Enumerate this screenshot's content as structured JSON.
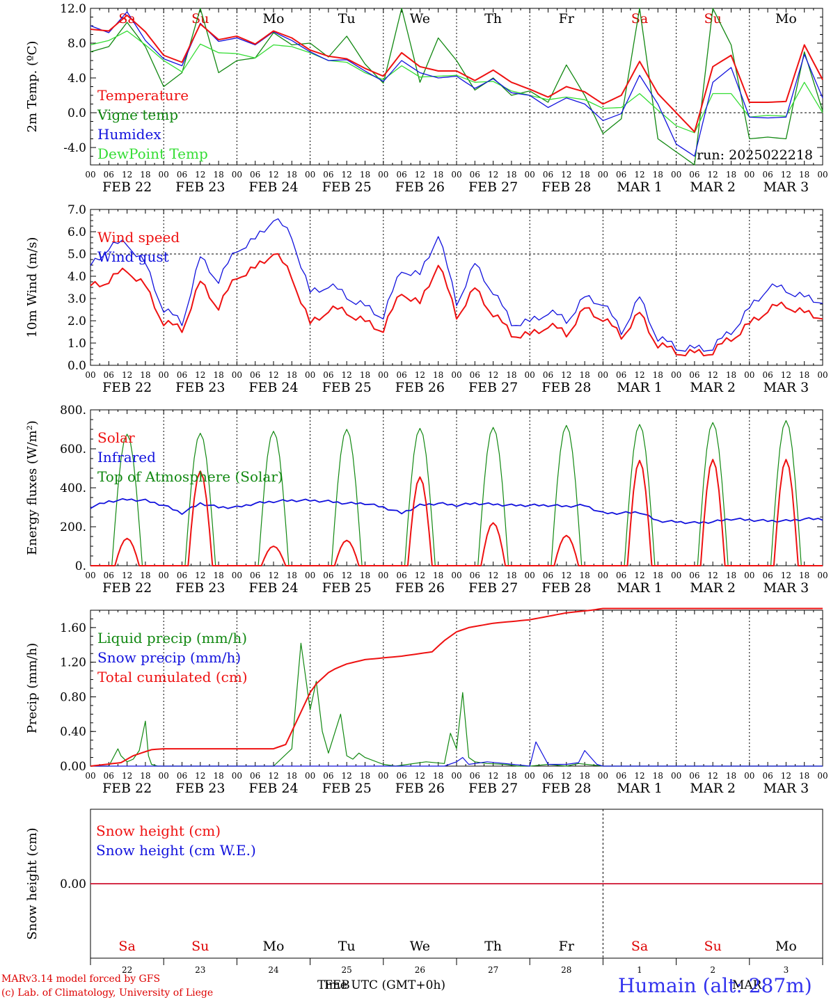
{
  "days": [
    "FEB 22",
    "FEB 23",
    "FEB 24",
    "FEB 25",
    "FEB 26",
    "FEB 27",
    "FEB 28",
    "MAR  1",
    "MAR  2",
    "MAR  3"
  ],
  "weekdays": [
    "Sa",
    "Su",
    "Mo",
    "Tu",
    "We",
    "Th",
    "Fr",
    "Sa",
    "Su",
    "Mo"
  ],
  "weekday_colors": [
    "#dd0000",
    "#dd0000",
    "#000000",
    "#000000",
    "#000000",
    "#000000",
    "#000000",
    "#dd0000",
    "#dd0000",
    "#000000"
  ],
  "hour_ticks": [
    "00",
    "06",
    "12",
    "18"
  ],
  "bottom_day_numbers": [
    "22",
    "23",
    "24",
    "25",
    "26",
    "27",
    "28",
    "1",
    "2",
    "3"
  ],
  "run_label": "run: 2025022218",
  "footer": {
    "credit_line1": "MARv3.14 model forced by GFS",
    "credit_line2": "(c) Lab. of Climatology, University of Liege",
    "x_title": "Time UTC (GMT+0h)",
    "month_left": "FEB",
    "month_right": "MAR",
    "station": "Humain (alt: 287m)"
  },
  "colors": {
    "red": "#ee1111",
    "green": "#118811",
    "blue": "#1111dd",
    "lightgreen": "#33dd33"
  },
  "chart_data": [
    {
      "type": "line",
      "title": "",
      "ylabel": "2m Temp. (ºC)",
      "ylim": [
        -6,
        12
      ],
      "yticks": [
        -4,
        0,
        4,
        8,
        12
      ],
      "ytick_labels": [
        "-4.0",
        "0.0",
        "4.0",
        "8.0",
        "12.0"
      ],
      "dashed_line_at": 0,
      "x_hours_from": "2025-02-22 00 UTC",
      "series": [
        {
          "name": "Temperature",
          "color": "red",
          "x": [
            0,
            6,
            12,
            18,
            24,
            30,
            36,
            42,
            48,
            54,
            60,
            66,
            72,
            78,
            84,
            90,
            96,
            102,
            108,
            114,
            120,
            126,
            132,
            138,
            144,
            150,
            156,
            162,
            168,
            174,
            180,
            186,
            192,
            198,
            204,
            210,
            216,
            222,
            228,
            234,
            240
          ],
          "values": [
            9.6,
            9.4,
            11.2,
            9.3,
            6.6,
            5.8,
            10.2,
            8.4,
            8.8,
            7.9,
            9.4,
            8.6,
            7.2,
            6.5,
            6.2,
            5.1,
            4.2,
            6.9,
            5.3,
            4.8,
            4.8,
            3.7,
            4.9,
            3.5,
            2.7,
            1.8,
            3.0,
            2.4,
            1.0,
            2.0,
            5.9,
            2.2,
            0.0,
            -2.2,
            5.3,
            6.6,
            1.2,
            1.2,
            1.3,
            7.8,
            3.8
          ]
        },
        {
          "name": "Vigne temp",
          "color": "green",
          "x": [
            0,
            6,
            12,
            18,
            24,
            30,
            36,
            42,
            48,
            54,
            60,
            66,
            72,
            78,
            84,
            90,
            96,
            102,
            108,
            114,
            120,
            126,
            132,
            138,
            144,
            150,
            156,
            162,
            168,
            174,
            180,
            186,
            192,
            198,
            204,
            210,
            216,
            222,
            228,
            234,
            240
          ],
          "values": [
            7.0,
            7.6,
            10.4,
            7.6,
            3.0,
            4.6,
            12.0,
            4.6,
            6.0,
            6.3,
            9.2,
            7.8,
            8.0,
            6.4,
            8.8,
            5.6,
            3.4,
            12.0,
            3.5,
            8.6,
            6.0,
            2.6,
            4.0,
            2.0,
            2.5,
            1.2,
            5.5,
            2.0,
            -2.4,
            -0.7,
            12.0,
            -3.0,
            -4.5,
            -6.0,
            12.0,
            7.8,
            -3.0,
            -2.8,
            -3.0,
            7.0,
            0.2
          ]
        },
        {
          "name": "Humidex",
          "color": "blue",
          "x": [
            0,
            6,
            12,
            18,
            24,
            30,
            36,
            42,
            48,
            54,
            60,
            66,
            72,
            78,
            84,
            90,
            96,
            102,
            108,
            114,
            120,
            126,
            132,
            138,
            144,
            150,
            156,
            162,
            168,
            174,
            180,
            186,
            192,
            198,
            204,
            210,
            216,
            222,
            228,
            234,
            240
          ],
          "values": [
            10.0,
            9.2,
            11.6,
            8.3,
            6.2,
            5.4,
            10.3,
            8.2,
            8.6,
            7.8,
            9.3,
            8.3,
            7.0,
            6.0,
            6.1,
            4.8,
            3.6,
            6.0,
            4.6,
            4.0,
            4.2,
            2.8,
            3.9,
            2.3,
            2.0,
            0.6,
            1.7,
            1.0,
            -0.9,
            -0.1,
            4.3,
            1.0,
            -3.6,
            -5.0,
            3.5,
            5.2,
            -0.5,
            -0.6,
            -0.5,
            6.7,
            1.7
          ]
        },
        {
          "name": "DewPoint Temp",
          "color": "lightgreen",
          "x": [
            0,
            6,
            12,
            18,
            24,
            30,
            36,
            42,
            48,
            54,
            60,
            66,
            72,
            78,
            84,
            90,
            96,
            102,
            108,
            114,
            120,
            126,
            132,
            138,
            144,
            150,
            156,
            162,
            168,
            174,
            180,
            186,
            192,
            198,
            204,
            210,
            216,
            222,
            228,
            234,
            240
          ],
          "values": [
            7.8,
            8.3,
            9.4,
            7.8,
            6.0,
            4.7,
            7.9,
            6.9,
            6.8,
            6.3,
            7.8,
            7.6,
            6.9,
            6.0,
            5.8,
            4.6,
            3.8,
            5.4,
            4.1,
            4.2,
            4.3,
            3.5,
            3.6,
            2.5,
            2.0,
            1.5,
            1.8,
            1.5,
            0.5,
            0.6,
            2.2,
            0.3,
            -1.5,
            -2.3,
            2.2,
            2.2,
            -0.5,
            -0.3,
            -0.4,
            3.5,
            0.0
          ]
        }
      ]
    },
    {
      "type": "line",
      "title": "",
      "ylabel": "10m Wind (m/s)",
      "ylim": [
        0,
        7
      ],
      "yticks": [
        0,
        1,
        2,
        3,
        4,
        5,
        6,
        7
      ],
      "ytick_labels": [
        "0.0",
        "1.0",
        "2.0",
        "3.0",
        "4.0",
        "5.0",
        "6.0",
        "7.0"
      ],
      "dashed_line_at": 5,
      "series": [
        {
          "name": "Wind speed",
          "color": "red",
          "x": [
            0,
            6,
            12,
            18,
            24,
            30,
            36,
            42,
            48,
            54,
            60,
            66,
            72,
            78,
            84,
            90,
            96,
            102,
            108,
            114,
            120,
            126,
            132,
            138,
            144,
            150,
            156,
            162,
            168,
            174,
            180,
            186,
            192,
            198,
            204,
            210,
            216,
            222,
            228,
            234,
            240
          ],
          "values": [
            3.5,
            3.8,
            4.3,
            3.5,
            1.9,
            1.6,
            3.7,
            2.6,
            4.0,
            4.3,
            5.1,
            4.0,
            1.8,
            2.5,
            2.4,
            1.9,
            1.6,
            3.3,
            2.7,
            4.6,
            2.2,
            3.4,
            2.3,
            1.4,
            1.3,
            1.8,
            1.4,
            2.5,
            2.1,
            1.3,
            2.3,
            0.9,
            0.6,
            0.5,
            0.6,
            1.2,
            1.8,
            2.5,
            2.7,
            2.3,
            2.2
          ]
        },
        {
          "name": "Wind gust",
          "color": "blue",
          "x": [
            0,
            6,
            12,
            18,
            24,
            30,
            36,
            42,
            48,
            54,
            60,
            66,
            72,
            78,
            84,
            90,
            96,
            102,
            108,
            114,
            120,
            126,
            132,
            138,
            144,
            150,
            156,
            162,
            168,
            174,
            180,
            186,
            192,
            198,
            204,
            210,
            216,
            222,
            228,
            234,
            240
          ],
          "values": [
            4.4,
            5.3,
            5.5,
            4.5,
            2.5,
            1.9,
            4.8,
            3.8,
            5.2,
            5.6,
            6.6,
            5.8,
            3.2,
            3.6,
            3.1,
            2.6,
            2.2,
            4.3,
            4.0,
            5.9,
            2.8,
            4.5,
            3.3,
            1.9,
            1.9,
            2.4,
            2.0,
            3.0,
            2.8,
            1.5,
            3.0,
            1.2,
            0.8,
            0.7,
            0.8,
            1.5,
            2.5,
            3.5,
            3.4,
            3.0,
            2.9
          ]
        }
      ]
    },
    {
      "type": "line",
      "title": "",
      "ylabel": "Energy fluxes (W/m²)",
      "ylim": [
        0,
        800
      ],
      "yticks": [
        0,
        200,
        400,
        600,
        800
      ],
      "ytick_labels": [
        "0.",
        "200.",
        "400.",
        "600.",
        "800."
      ],
      "series": [
        {
          "name": "Solar",
          "color": "red",
          "daily_peak": [
            140,
            485,
            100,
            130,
            455,
            220,
            155,
            540,
            545,
            545
          ]
        },
        {
          "name": "Infrared",
          "color": "blue",
          "x": [
            0,
            6,
            12,
            18,
            24,
            30,
            36,
            42,
            48,
            54,
            60,
            66,
            72,
            78,
            84,
            90,
            96,
            102,
            108,
            114,
            120,
            126,
            132,
            138,
            144,
            150,
            156,
            162,
            168,
            174,
            180,
            186,
            192,
            198,
            204,
            210,
            216,
            222,
            228,
            234,
            240
          ],
          "values": [
            300,
            330,
            340,
            335,
            310,
            270,
            320,
            300,
            300,
            320,
            330,
            335,
            335,
            330,
            320,
            320,
            300,
            270,
            310,
            320,
            310,
            320,
            315,
            310,
            310,
            310,
            305,
            310,
            270,
            270,
            275,
            230,
            225,
            220,
            225,
            240,
            235,
            230,
            230,
            240,
            240
          ]
        },
        {
          "name": "Top of Atmosphere (Solar)",
          "color": "green",
          "daily_peak": [
            675,
            680,
            690,
            700,
            705,
            710,
            720,
            725,
            735,
            745
          ]
        }
      ]
    },
    {
      "type": "line",
      "title": "",
      "ylabel": "Precip (mm/h)",
      "ylim": [
        0,
        1.8
      ],
      "yticks": [
        0,
        0.4,
        0.8,
        1.2,
        1.6
      ],
      "ytick_labels": [
        "0.00",
        "0.40",
        "0.80",
        "1.20",
        "1.60"
      ],
      "series": [
        {
          "name": "Liquid precip (mm/h)",
          "color": "green",
          "x": [
            0,
            6,
            9,
            10,
            12,
            14,
            16,
            18,
            19,
            20,
            22,
            24,
            36,
            48,
            60,
            66,
            69,
            72,
            74,
            76,
            78,
            82,
            84,
            86,
            88,
            90,
            96,
            100,
            110,
            116,
            118,
            120,
            122,
            124,
            126,
            130,
            136,
            140,
            144,
            150,
            156,
            160,
            168,
            175,
            180,
            200,
            240
          ],
          "values": [
            0,
            0,
            0.2,
            0.12,
            0.05,
            0.08,
            0.18,
            0.52,
            0.12,
            0.02,
            0,
            0,
            0,
            0,
            0,
            0.2,
            1.42,
            0.65,
            0.98,
            0.4,
            0.15,
            0.6,
            0.12,
            0.08,
            0.15,
            0.1,
            0.02,
            0,
            0.05,
            0.03,
            0.38,
            0.2,
            0.85,
            0.1,
            0.05,
            0.03,
            0.02,
            0,
            0,
            0.02,
            0,
            0.03,
            0,
            0,
            0,
            0,
            0
          ]
        },
        {
          "name": "Snow precip (mm/h)",
          "color": "blue",
          "x": [
            0,
            116,
            120,
            122,
            124,
            130,
            136,
            144,
            146,
            150,
            156,
            160,
            162,
            166,
            168,
            176,
            240
          ],
          "values": [
            0,
            0,
            0.05,
            0.1,
            0.02,
            0.05,
            0.03,
            0,
            0.28,
            0.02,
            0.02,
            0.04,
            0.18,
            0.02,
            0,
            0,
            0
          ]
        },
        {
          "name": "Total cumulated (cm)",
          "color": "red",
          "x": [
            0,
            10,
            14,
            20,
            24,
            36,
            48,
            60,
            64,
            66,
            70,
            72,
            74,
            78,
            80,
            84,
            90,
            96,
            102,
            108,
            112,
            116,
            118,
            120,
            124,
            132,
            144,
            150,
            156,
            164,
            168,
            180,
            240
          ],
          "values": [
            0,
            0.04,
            0.12,
            0.19,
            0.2,
            0.2,
            0.2,
            0.2,
            0.25,
            0.4,
            0.7,
            0.85,
            0.95,
            1.08,
            1.12,
            1.18,
            1.23,
            1.25,
            1.27,
            1.3,
            1.32,
            1.45,
            1.5,
            1.55,
            1.6,
            1.65,
            1.69,
            1.73,
            1.77,
            1.8,
            1.82,
            1.82,
            1.82
          ]
        }
      ]
    },
    {
      "type": "line",
      "title": "",
      "ylabel": "Snow height (cm)",
      "ytick_labels": [
        "0.00"
      ],
      "series": [
        {
          "name": "Snow height (cm)",
          "color": "red",
          "values": [
            0,
            0
          ]
        },
        {
          "name": "Snow height (cm W.E.)",
          "color": "blue",
          "values": [
            0,
            0
          ]
        }
      ]
    }
  ]
}
